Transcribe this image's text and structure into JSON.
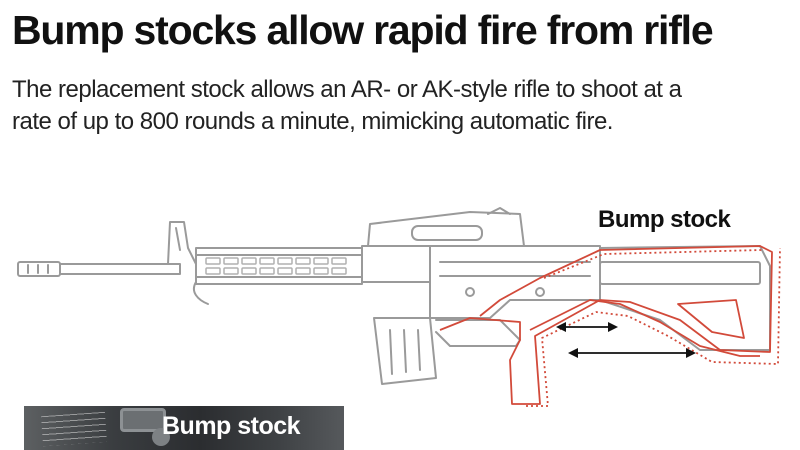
{
  "header": {
    "title": "Bump stocks allow rapid fire from rifle",
    "subtitle_line1": "The replacement stock allows an AR- or AK-style rifle to shoot at a",
    "subtitle_line2": "rate of up to 800 rounds a minute, mimicking automatic fire."
  },
  "diagram": {
    "callout_label": "Bump stock",
    "rifle_color": "#9a9a9a",
    "stock_color": "#d24a3a",
    "arrow_color": "#111111"
  },
  "photo": {
    "label": "Bump stock"
  }
}
